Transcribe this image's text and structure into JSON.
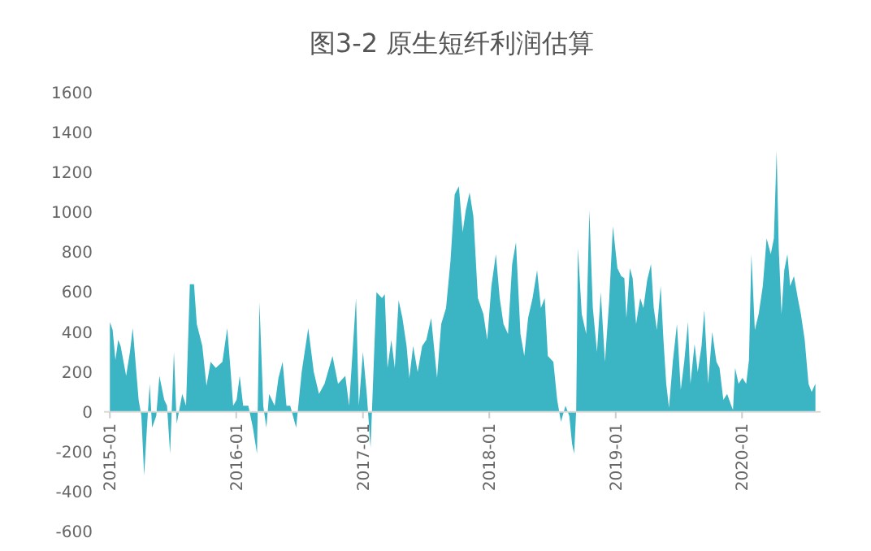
{
  "chart_data": {
    "type": "area",
    "title": "图3-2  原生短纤利润估算",
    "color": "#3bb4c4",
    "x": [
      "2015-01-01",
      "2015-01-09",
      "2015-01-17",
      "2015-01-25",
      "2015-02-01",
      "2015-02-17",
      "2015-02-28",
      "2015-03-08",
      "2015-03-16",
      "2015-03-25",
      "2015-04-02",
      "2015-04-10",
      "2015-04-18",
      "2015-04-26",
      "2015-05-03",
      "2015-05-15",
      "2015-05-24",
      "2015-06-07",
      "2015-06-15",
      "2015-06-24",
      "2015-07-05",
      "2015-07-13",
      "2015-07-29",
      "2015-08-09",
      "2015-08-20",
      "2015-09-01",
      "2015-09-09",
      "2015-09-25",
      "2015-10-07",
      "2015-10-19",
      "2015-11-03",
      "2015-11-22",
      "2015-12-06",
      "2015-12-16",
      "2015-12-23",
      "2016-01-02",
      "2016-01-11",
      "2016-01-21",
      "2016-02-05",
      "2016-02-18",
      "2016-03-01",
      "2016-03-08",
      "2016-03-19",
      "2016-03-28",
      "2016-04-05",
      "2016-04-21",
      "2016-05-02",
      "2016-05-14",
      "2016-05-25",
      "2016-06-05",
      "2016-06-22",
      "2016-07-08",
      "2016-07-27",
      "2016-08-12",
      "2016-08-27",
      "2016-09-12",
      "2016-10-05",
      "2016-10-21",
      "2016-11-11",
      "2016-11-22",
      "2016-12-12",
      "2016-12-20",
      "2017-01-01",
      "2017-01-12",
      "2017-01-23",
      "2017-02-09",
      "2017-02-25",
      "2017-03-05",
      "2017-03-13",
      "2017-03-24",
      "2017-04-03",
      "2017-04-14",
      "2017-04-25",
      "2017-05-07",
      "2017-05-15",
      "2017-05-26",
      "2017-06-08",
      "2017-06-21",
      "2017-07-03",
      "2017-07-17",
      "2017-08-03",
      "2017-08-15",
      "2017-08-29",
      "2017-09-11",
      "2017-09-23",
      "2017-10-05",
      "2017-10-16",
      "2017-10-25",
      "2017-11-05",
      "2017-11-16",
      "2017-11-29",
      "2017-12-15",
      "2017-12-26",
      "2018-01-07",
      "2018-01-20",
      "2018-01-31",
      "2018-02-11",
      "2018-02-24",
      "2018-03-08",
      "2018-03-19",
      "2018-04-01",
      "2018-04-12",
      "2018-04-23",
      "2018-05-06",
      "2018-05-19",
      "2018-05-30",
      "2018-06-10",
      "2018-06-19",
      "2018-07-05",
      "2018-07-16",
      "2018-07-27",
      "2018-08-09",
      "2018-08-20",
      "2018-08-28",
      "2018-09-03",
      "2018-09-09",
      "2018-09-14",
      "2018-09-25",
      "2018-10-08",
      "2018-10-17",
      "2018-10-27",
      "2018-11-08",
      "2018-11-19",
      "2018-12-01",
      "2018-12-13",
      "2018-12-24",
      "2019-01-06",
      "2019-01-17",
      "2019-01-26",
      "2019-02-01",
      "2019-02-11",
      "2019-02-19",
      "2019-03-01",
      "2019-03-13",
      "2019-03-22",
      "2019-04-02",
      "2019-04-13",
      "2019-04-21",
      "2019-04-30",
      "2019-05-11",
      "2019-05-19",
      "2019-05-27",
      "2019-06-04",
      "2019-06-15",
      "2019-06-27",
      "2019-07-08",
      "2019-07-18",
      "2019-07-29",
      "2019-08-05",
      "2019-08-17",
      "2019-08-26",
      "2019-09-06",
      "2019-09-14",
      "2019-09-25",
      "2019-10-07",
      "2019-10-19",
      "2019-10-28",
      "2019-11-08",
      "2019-11-19",
      "2019-12-01",
      "2019-12-06",
      "2019-12-12",
      "2019-12-22",
      "2020-01-02",
      "2020-01-13",
      "2020-01-21",
      "2020-01-28",
      "2020-02-07",
      "2020-02-18",
      "2020-03-01",
      "2020-03-12",
      "2020-03-24",
      "2020-04-02",
      "2020-04-10",
      "2020-04-16",
      "2020-04-24",
      "2020-05-02",
      "2020-05-11",
      "2020-05-19",
      "2020-05-30",
      "2020-06-10",
      "2020-06-19",
      "2020-06-30",
      "2020-07-11",
      "2020-07-20",
      "2020-07-31"
    ],
    "values": [
      450,
      410,
      260,
      360,
      330,
      180,
      300,
      420,
      250,
      60,
      -20,
      -320,
      -80,
      140,
      -80,
      -20,
      180,
      60,
      30,
      -210,
      300,
      -60,
      90,
      30,
      640,
      640,
      440,
      330,
      130,
      250,
      220,
      250,
      420,
      200,
      30,
      60,
      180,
      30,
      30,
      -80,
      -210,
      550,
      30,
      -80,
      90,
      30,
      170,
      250,
      30,
      30,
      -80,
      200,
      420,
      200,
      90,
      140,
      280,
      140,
      180,
      30,
      570,
      30,
      300,
      90,
      -180,
      600,
      570,
      590,
      220,
      360,
      220,
      560,
      470,
      330,
      170,
      330,
      200,
      330,
      360,
      470,
      170,
      440,
      520,
      760,
      1090,
      1130,
      900,
      1010,
      1100,
      980,
      570,
      490,
      360,
      630,
      790,
      570,
      440,
      390,
      740,
      850,
      390,
      280,
      470,
      570,
      710,
      520,
      570,
      280,
      250,
      60,
      -50,
      30,
      -20,
      -160,
      -210,
      10,
      820,
      490,
      390,
      1010,
      520,
      300,
      600,
      250,
      550,
      930,
      720,
      680,
      670,
      470,
      720,
      670,
      440,
      570,
      520,
      660,
      740,
      520,
      410,
      630,
      360,
      140,
      20,
      250,
      440,
      110,
      250,
      450,
      140,
      340,
      200,
      330,
      510,
      140,
      400,
      250,
      220,
      60,
      90,
      30,
      10,
      220,
      140,
      170,
      140,
      260,
      790,
      410,
      490,
      630,
      870,
      790,
      870,
      1310,
      820,
      490,
      710,
      790,
      630,
      680,
      570,
      490,
      360,
      140,
      100,
      140
    ],
    "xlim": [
      "2014-12-15",
      "2020-08-15"
    ],
    "xticks": [
      "2015-01",
      "2016-01",
      "2017-01",
      "2018-01",
      "2019-01",
      "2020-01"
    ],
    "ylim": [
      -600,
      1600
    ],
    "yticks": [
      -600,
      -400,
      -200,
      0,
      200,
      400,
      600,
      800,
      1000,
      1200,
      1400,
      1600
    ],
    "grid": false
  }
}
